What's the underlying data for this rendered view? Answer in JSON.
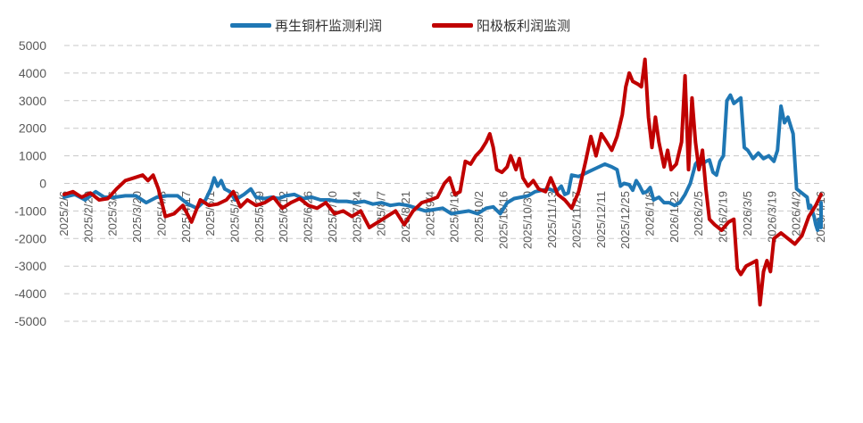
{
  "chart_data": {
    "type": "line",
    "title": "",
    "xlabel": "",
    "ylabel": "",
    "ylim": [
      -5000,
      5000
    ],
    "yticks": [
      5000,
      4000,
      3000,
      2000,
      1000,
      0,
      -1000,
      -2000,
      -3000,
      -4000,
      -5000
    ],
    "grid": "horizontal dashed",
    "legend_position": "top",
    "x_tick_labels": [
      "2025/2/6",
      "2025/2/20",
      "2025/3/6",
      "2025/3/20",
      "2025/4/3",
      "2025/4/17",
      "2025/5/1",
      "2025/5/15",
      "2025/5/29",
      "2025/6/12",
      "2025/6/26",
      "2025/7/10",
      "2025/7/24",
      "2025/8/7",
      "2025/8/21",
      "2025/9/4",
      "2025/9/18",
      "2025/10/2",
      "2025/10/16",
      "2025/10/30",
      "2025/11/13",
      "2025/11/27",
      "2025/12/11",
      "2025/12/25",
      "2026/1/8",
      "2026/1/22",
      "2026/2/5",
      "2026/2/19",
      "2026/3/5",
      "2026/3/19",
      "2026/4/2",
      "2026/4/16"
    ],
    "x_range": [
      "2025/2/6",
      "2026/4/16"
    ],
    "series": [
      {
        "name": "再生铜杆监测利润",
        "color": "#1F77B4",
        "points": [
          [
            "2025/2/6",
            -500
          ],
          [
            "2025/2/12",
            -400
          ],
          [
            "2025/2/18",
            -600
          ],
          [
            "2025/2/24",
            -300
          ],
          [
            "2025/3/1",
            -500
          ],
          [
            "2025/3/7",
            -500
          ],
          [
            "2025/3/13",
            -450
          ],
          [
            "2025/3/19",
            -450
          ],
          [
            "2025/3/25",
            -700
          ],
          [
            "2025/3/31",
            -500
          ],
          [
            "2025/4/6",
            -450
          ],
          [
            "2025/4/12",
            -450
          ],
          [
            "2025/4/18",
            -750
          ],
          [
            "2025/4/23",
            -900
          ],
          [
            "2025/4/28",
            -600
          ],
          [
            "2025/5/1",
            -200
          ],
          [
            "2025/5/3",
            200
          ],
          [
            "2025/5/5",
            -100
          ],
          [
            "2025/5/7",
            100
          ],
          [
            "2025/5/9",
            -200
          ],
          [
            "2025/5/12",
            -300
          ],
          [
            "2025/5/15",
            -600
          ],
          [
            "2025/5/20",
            -400
          ],
          [
            "2025/5/24",
            -200
          ],
          [
            "2025/5/27",
            -500
          ],
          [
            "2025/6/1",
            -550
          ],
          [
            "2025/6/5",
            -500
          ],
          [
            "2025/6/9",
            -550
          ],
          [
            "2025/6/13",
            -450
          ],
          [
            "2025/6/18",
            -400
          ],
          [
            "2025/6/23",
            -550
          ],
          [
            "2025/6/28",
            -500
          ],
          [
            "2025/7/3",
            -600
          ],
          [
            "2025/7/8",
            -600
          ],
          [
            "2025/7/13",
            -650
          ],
          [
            "2025/7/18",
            -650
          ],
          [
            "2025/7/23",
            -700
          ],
          [
            "2025/7/28",
            -650
          ],
          [
            "2025/8/2",
            -750
          ],
          [
            "2025/8/7",
            -700
          ],
          [
            "2025/8/12",
            -800
          ],
          [
            "2025/8/17",
            -750
          ],
          [
            "2025/8/22",
            -800
          ],
          [
            "2025/8/27",
            -900
          ],
          [
            "2025/9/1",
            -1000
          ],
          [
            "2025/9/6",
            -950
          ],
          [
            "2025/9/11",
            -900
          ],
          [
            "2025/9/16",
            -1100
          ],
          [
            "2025/9/21",
            -1050
          ],
          [
            "2025/9/26",
            -1000
          ],
          [
            "2025/10/1",
            -1100
          ],
          [
            "2025/10/6",
            -900
          ],
          [
            "2025/10/10",
            -850
          ],
          [
            "2025/10/14",
            -1100
          ],
          [
            "2025/10/18",
            -700
          ],
          [
            "2025/10/22",
            -550
          ],
          [
            "2025/10/26",
            -500
          ],
          [
            "2025/10/30",
            -450
          ],
          [
            "2025/11/3",
            -300
          ],
          [
            "2025/11/7",
            -250
          ],
          [
            "2025/11/11",
            -200
          ],
          [
            "2025/11/15",
            -300
          ],
          [
            "2025/11/18",
            -100
          ],
          [
            "2025/11/20",
            -400
          ],
          [
            "2025/11/22",
            -350
          ],
          [
            "2025/11/24",
            300
          ],
          [
            "2025/11/28",
            250
          ],
          [
            "2025/12/3",
            400
          ],
          [
            "2025/12/8",
            550
          ],
          [
            "2025/12/13",
            700
          ],
          [
            "2025/12/17",
            600
          ],
          [
            "2025/12/20",
            500
          ],
          [
            "2025/12/22",
            -100
          ],
          [
            "2025/12/24",
            0
          ],
          [
            "2025/12/27",
            -50
          ],
          [
            "2025/12/29",
            -250
          ],
          [
            "2025/12/31",
            100
          ],
          [
            "2026/1/2",
            -100
          ],
          [
            "2026/1/4",
            -350
          ],
          [
            "2026/1/6",
            -300
          ],
          [
            "2026/1/8",
            -150
          ],
          [
            "2026/1/10",
            -600
          ],
          [
            "2026/1/13",
            -500
          ],
          [
            "2026/1/16",
            -700
          ],
          [
            "2026/1/19",
            -700
          ],
          [
            "2026/1/22",
            -800
          ],
          [
            "2026/1/25",
            -700
          ],
          [
            "2026/1/28",
            -400
          ],
          [
            "2026/1/31",
            0
          ],
          [
            "2026/2/3",
            700
          ],
          [
            "2026/2/5",
            850
          ],
          [
            "2026/2/7",
            700
          ],
          [
            "2026/2/9",
            800
          ],
          [
            "2026/2/11",
            850
          ],
          [
            "2026/2/13",
            400
          ],
          [
            "2026/2/15",
            300
          ],
          [
            "2026/2/17",
            800
          ],
          [
            "2026/2/19",
            1000
          ],
          [
            "2026/2/21",
            3000
          ],
          [
            "2026/2/23",
            3200
          ],
          [
            "2026/2/25",
            2900
          ],
          [
            "2026/2/27",
            3000
          ],
          [
            "2026/3/1",
            3100
          ],
          [
            "2026/3/3",
            1300
          ],
          [
            "2026/3/5",
            1200
          ],
          [
            "2026/3/8",
            900
          ],
          [
            "2026/3/11",
            1100
          ],
          [
            "2026/3/14",
            900
          ],
          [
            "2026/3/17",
            1000
          ],
          [
            "2026/3/20",
            800
          ],
          [
            "2026/3/22",
            1200
          ],
          [
            "2026/3/24",
            2800
          ],
          [
            "2026/3/26",
            2200
          ],
          [
            "2026/3/28",
            2400
          ],
          [
            "2026/3/31",
            1800
          ],
          [
            "2026/4/2",
            -200
          ],
          [
            "2026/4/4",
            -300
          ],
          [
            "2026/4/6",
            -400
          ],
          [
            "2026/4/8",
            -500
          ],
          [
            "2026/4/9",
            -900
          ],
          [
            "2026/4/10",
            -800
          ],
          [
            "2026/4/11",
            -1000
          ],
          [
            "2026/4/12",
            -1200
          ],
          [
            "2026/4/13",
            -1500
          ],
          [
            "2026/4/14",
            -1700
          ],
          [
            "2026/4/15",
            -1300
          ],
          [
            "2026/4/16",
            -1600
          ],
          [
            "2026/4/16",
            -700
          ]
        ]
      },
      {
        "name": "阳极板利润监测",
        "color": "#C00000",
        "points": [
          [
            "2025/2/6",
            -400
          ],
          [
            "2025/2/11",
            -300
          ],
          [
            "2025/2/16",
            -500
          ],
          [
            "2025/2/21",
            -350
          ],
          [
            "2025/2/26",
            -600
          ],
          [
            "2025/3/3",
            -550
          ],
          [
            "2025/3/8",
            -200
          ],
          [
            "2025/3/13",
            100
          ],
          [
            "2025/3/18",
            200
          ],
          [
            "2025/3/23",
            300
          ],
          [
            "2025/3/26",
            100
          ],
          [
            "2025/3/29",
            300
          ],
          [
            "2025/4/1",
            -200
          ],
          [
            "2025/4/5",
            -1200
          ],
          [
            "2025/4/10",
            -1100
          ],
          [
            "2025/4/15",
            -800
          ],
          [
            "2025/4/20",
            -1400
          ],
          [
            "2025/4/25",
            -600
          ],
          [
            "2025/4/30",
            -800
          ],
          [
            "2025/5/5",
            -750
          ],
          [
            "2025/5/10",
            -600
          ],
          [
            "2025/5/14",
            -300
          ],
          [
            "2025/5/18",
            -850
          ],
          [
            "2025/5/22",
            -600
          ],
          [
            "2025/5/27",
            -800
          ],
          [
            "2025/6/1",
            -700
          ],
          [
            "2025/6/6",
            -500
          ],
          [
            "2025/6/11",
            -900
          ],
          [
            "2025/6/16",
            -700
          ],
          [
            "2025/6/21",
            -550
          ],
          [
            "2025/6/26",
            -800
          ],
          [
            "2025/7/1",
            -900
          ],
          [
            "2025/7/6",
            -700
          ],
          [
            "2025/7/11",
            -1100
          ],
          [
            "2025/7/16",
            -1000
          ],
          [
            "2025/7/21",
            -1200
          ],
          [
            "2025/7/26",
            -1000
          ],
          [
            "2025/7/31",
            -1600
          ],
          [
            "2025/8/5",
            -1400
          ],
          [
            "2025/8/10",
            -1200
          ],
          [
            "2025/8/15",
            -1000
          ],
          [
            "2025/8/20",
            -1500
          ],
          [
            "2025/8/25",
            -1000
          ],
          [
            "2025/8/30",
            -700
          ],
          [
            "2025/9/4",
            -600
          ],
          [
            "2025/9/8",
            -500
          ],
          [
            "2025/9/12",
            0
          ],
          [
            "2025/9/15",
            200
          ],
          [
            "2025/9/18",
            -400
          ],
          [
            "2025/9/21",
            -300
          ],
          [
            "2025/9/24",
            800
          ],
          [
            "2025/9/27",
            700
          ],
          [
            "2025/9/30",
            1000
          ],
          [
            "2025/10/3",
            1200
          ],
          [
            "2025/10/6",
            1500
          ],
          [
            "2025/10/8",
            1800
          ],
          [
            "2025/10/10",
            1300
          ],
          [
            "2025/10/12",
            500
          ],
          [
            "2025/10/15",
            400
          ],
          [
            "2025/10/18",
            600
          ],
          [
            "2025/10/20",
            1000
          ],
          [
            "2025/10/23",
            500
          ],
          [
            "2025/10/25",
            900
          ],
          [
            "2025/10/27",
            200
          ],
          [
            "2025/10/30",
            -100
          ],
          [
            "2025/11/2",
            100
          ],
          [
            "2025/11/5",
            -200
          ],
          [
            "2025/11/9",
            -300
          ],
          [
            "2025/11/12",
            200
          ],
          [
            "2025/11/16",
            -400
          ],
          [
            "2025/11/20",
            -600
          ],
          [
            "2025/11/24",
            -900
          ],
          [
            "2025/11/28",
            -300
          ],
          [
            "2025/12/2",
            800
          ],
          [
            "2025/12/5",
            1700
          ],
          [
            "2025/12/8",
            1000
          ],
          [
            "2025/12/11",
            1800
          ],
          [
            "2025/12/14",
            1500
          ],
          [
            "2025/12/17",
            1200
          ],
          [
            "2025/12/20",
            1700
          ],
          [
            "2025/12/23",
            2500
          ],
          [
            "2025/12/25",
            3500
          ],
          [
            "2025/12/27",
            4000
          ],
          [
            "2025/12/29",
            3700
          ],
          [
            "2026/1/1",
            3600
          ],
          [
            "2026/1/3",
            3500
          ],
          [
            "2026/1/5",
            4500
          ],
          [
            "2026/1/7",
            2400
          ],
          [
            "2026/1/9",
            1300
          ],
          [
            "2026/1/11",
            2400
          ],
          [
            "2026/1/13",
            1500
          ],
          [
            "2026/1/16",
            600
          ],
          [
            "2026/1/18",
            1200
          ],
          [
            "2026/1/20",
            500
          ],
          [
            "2026/1/23",
            700
          ],
          [
            "2026/1/26",
            1500
          ],
          [
            "2026/1/28",
            3900
          ],
          [
            "2026/1/30",
            500
          ],
          [
            "2026/2/1",
            3100
          ],
          [
            "2026/2/3",
            1500
          ],
          [
            "2026/2/5",
            500
          ],
          [
            "2026/2/7",
            1200
          ],
          [
            "2026/2/9",
            -200
          ],
          [
            "2026/2/11",
            -1300
          ],
          [
            "2026/2/14",
            -1500
          ],
          [
            "2026/2/18",
            -1700
          ],
          [
            "2026/2/22",
            -1400
          ],
          [
            "2026/2/25",
            -1300
          ],
          [
            "2026/2/27",
            -3100
          ],
          [
            "2026/3/1",
            -3300
          ],
          [
            "2026/3/4",
            -3000
          ],
          [
            "2026/3/7",
            -2900
          ],
          [
            "2026/3/10",
            -2800
          ],
          [
            "2026/3/12",
            -4400
          ],
          [
            "2026/3/14",
            -3200
          ],
          [
            "2026/3/16",
            -2800
          ],
          [
            "2026/3/18",
            -3200
          ],
          [
            "2026/3/20",
            -2000
          ],
          [
            "2026/3/24",
            -1800
          ],
          [
            "2026/3/28",
            -2000
          ],
          [
            "2026/4/1",
            -2200
          ],
          [
            "2026/4/5",
            -1900
          ],
          [
            "2026/4/9",
            -1200
          ],
          [
            "2026/4/13",
            -800
          ],
          [
            "2026/4/16",
            -400
          ]
        ]
      }
    ]
  }
}
